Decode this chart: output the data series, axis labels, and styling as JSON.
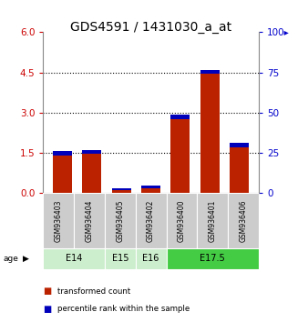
{
  "title": "GDS4591 / 1431030_a_at",
  "samples": [
    "GSM936403",
    "GSM936404",
    "GSM936405",
    "GSM936402",
    "GSM936400",
    "GSM936401",
    "GSM936406"
  ],
  "red_values": [
    1.42,
    1.47,
    0.1,
    0.2,
    2.75,
    4.47,
    1.72
  ],
  "blue_values_left": [
    0.15,
    0.15,
    0.1,
    0.1,
    0.18,
    0.12,
    0.15
  ],
  "ylim_left": [
    0,
    6
  ],
  "ylim_right": [
    0,
    100
  ],
  "yticks_left": [
    0,
    1.5,
    3,
    4.5,
    6
  ],
  "yticks_right": [
    0,
    25,
    50,
    75,
    100
  ],
  "yticklabels_right": [
    "0",
    "25",
    "50",
    "75",
    "100▸"
  ],
  "red_color": "#bb2200",
  "blue_color": "#0000bb",
  "bar_width": 0.65,
  "grid_color": "#000000",
  "legend_red": "transformed count",
  "legend_blue": "percentile rank within the sample",
  "left_axis_color": "#cc0000",
  "right_axis_color": "#0000cc",
  "title_fontsize": 10,
  "tick_fontsize": 7.5,
  "age_groups": [
    {
      "label": "E14",
      "start": 0,
      "end": 1,
      "color": "#cceecc"
    },
    {
      "label": "E15",
      "start": 2,
      "end": 2,
      "color": "#cceecc"
    },
    {
      "label": "E16",
      "start": 3,
      "end": 3,
      "color": "#cceecc"
    },
    {
      "label": "E17.5",
      "start": 4,
      "end": 6,
      "color": "#44cc44"
    }
  ]
}
